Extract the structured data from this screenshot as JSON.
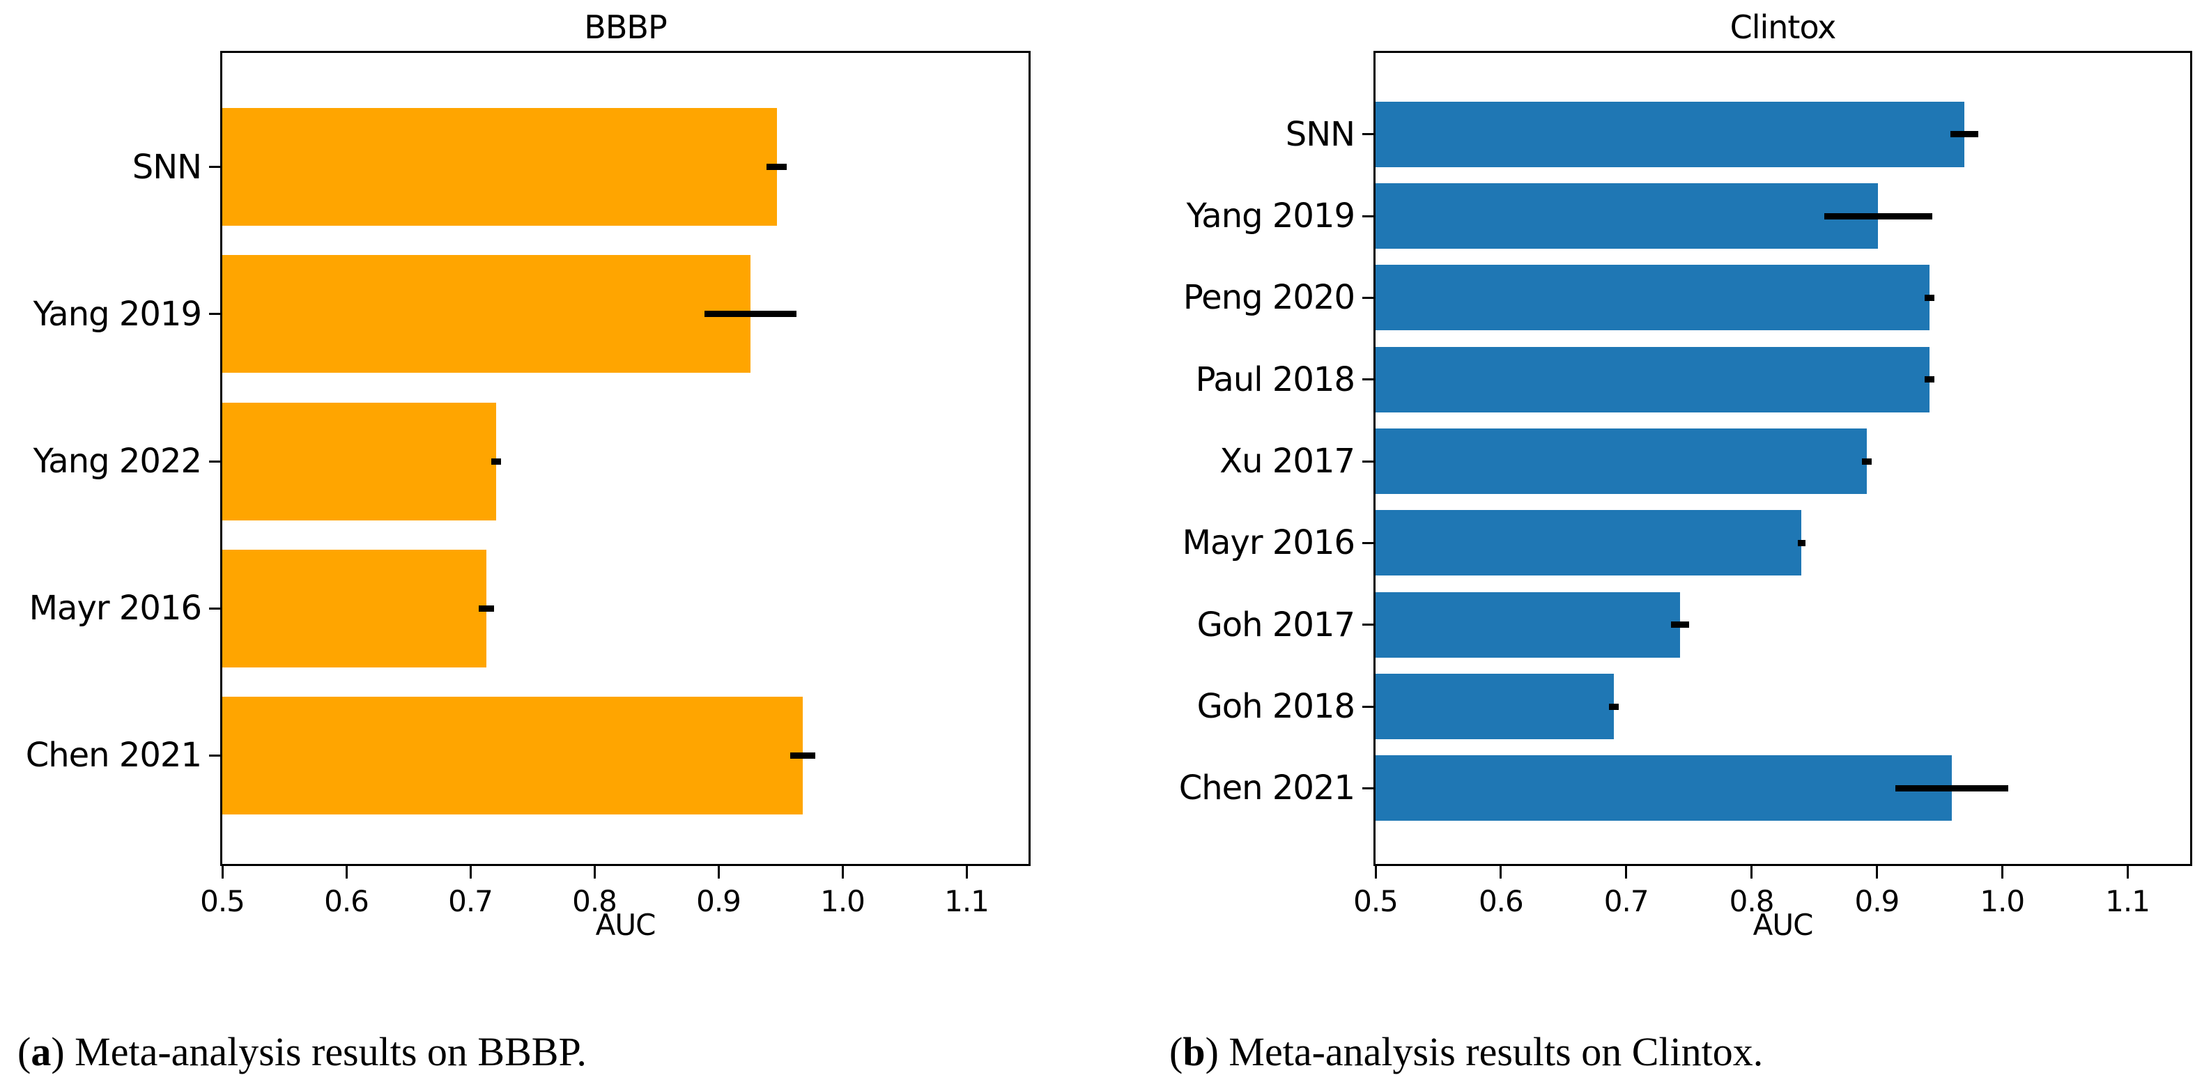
{
  "chart_data": [
    {
      "type": "bar",
      "orientation": "horizontal",
      "title": "BBBP",
      "xlabel": "AUC",
      "bar_color": "#FFA500",
      "error_color": "#000000",
      "categories": [
        "SNN",
        "Yang 2019",
        "Yang 2022",
        "Mayr 2016",
        "Chen 2021"
      ],
      "values": [
        0.947,
        0.926,
        0.721,
        0.713,
        0.968
      ],
      "errors": [
        0.008,
        0.037,
        0.004,
        0.006,
        0.01
      ],
      "xlim": [
        0.5,
        1.15
      ],
      "xticks": [
        "0.5",
        "0.6",
        "0.7",
        "0.8",
        "0.9",
        "1.0",
        "1.1"
      ],
      "grid": false,
      "legend": false
    },
    {
      "type": "bar",
      "orientation": "horizontal",
      "title": "Clintox",
      "xlabel": "AUC",
      "bar_color": "#1F77B4",
      "error_color": "#000000",
      "categories": [
        "SNN",
        "Yang 2019",
        "Peng 2020",
        "Paul 2018",
        "Xu 2017",
        "Mayr 2016",
        "Goh 2017",
        "Goh 2018",
        "Chen 2021"
      ],
      "values": [
        0.97,
        0.901,
        0.942,
        0.942,
        0.892,
        0.84,
        0.743,
        0.69,
        0.96
      ],
      "errors": [
        0.011,
        0.043,
        0.004,
        0.004,
        0.004,
        0.003,
        0.007,
        0.004,
        0.045
      ],
      "xlim": [
        0.5,
        1.15
      ],
      "xticks": [
        "0.5",
        "0.6",
        "0.7",
        "0.8",
        "0.9",
        "1.0",
        "1.1"
      ],
      "grid": false,
      "legend": false
    }
  ],
  "captions": [
    {
      "open_paren": "(",
      "letter": "a",
      "close_paren": ")",
      "text": "Meta-analysis results on BBBP."
    },
    {
      "open_paren": "(",
      "letter": "b",
      "close_paren": ")",
      "text": "Meta-analysis results on Clintox."
    }
  ]
}
